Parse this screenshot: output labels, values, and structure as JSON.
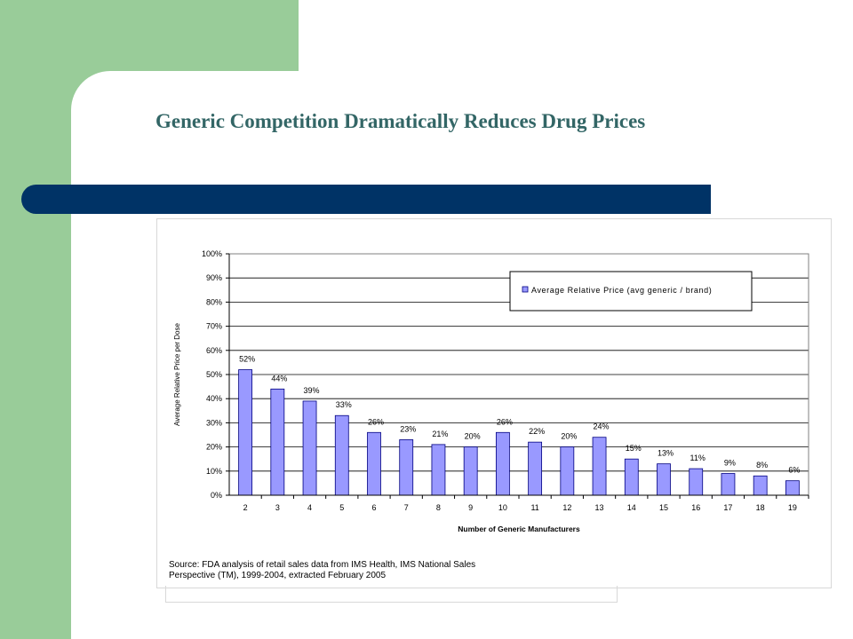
{
  "slide": {
    "title": "Generic Competition Dramatically Reduces Drug Prices"
  },
  "colors": {
    "sidebar_green": "#99cc99",
    "title_bar_navy": "#003366",
    "title_text": "#336666",
    "bar_fill": "#9999ff",
    "bar_stroke": "#000080"
  },
  "chart_data": {
    "type": "bar",
    "title": "",
    "xlabel": "Number of Generic Manufacturers",
    "ylabel": "Average Relative Price per Dose",
    "ylim": [
      0,
      100
    ],
    "yticks": [
      "0%",
      "10%",
      "20%",
      "30%",
      "40%",
      "50%",
      "60%",
      "70%",
      "80%",
      "90%",
      "100%"
    ],
    "categories": [
      "2",
      "3",
      "4",
      "5",
      "6",
      "7",
      "8",
      "9",
      "10",
      "11",
      "12",
      "13",
      "14",
      "15",
      "16",
      "17",
      "18",
      "19"
    ],
    "series": [
      {
        "name": "Average Relative Price (avg generic / brand)",
        "values": [
          52,
          44,
          39,
          33,
          26,
          23,
          21,
          20,
          26,
          22,
          20,
          24,
          15,
          13,
          11,
          9,
          8,
          6
        ],
        "labels": [
          "52%",
          "44%",
          "39%",
          "33%",
          "26%",
          "23%",
          "21%",
          "20%",
          "26%",
          "22%",
          "20%",
          "24%",
          "15%",
          "13%",
          "11%",
          "9%",
          "8%",
          "6%"
        ]
      }
    ],
    "grid": true,
    "legend": "top-right",
    "source_lines": [
      "Source: FDA analysis of retail sales data from IMS Health, IMS National Sales",
      "Perspective (TM),  1999-2004,  extracted February 2005"
    ]
  }
}
